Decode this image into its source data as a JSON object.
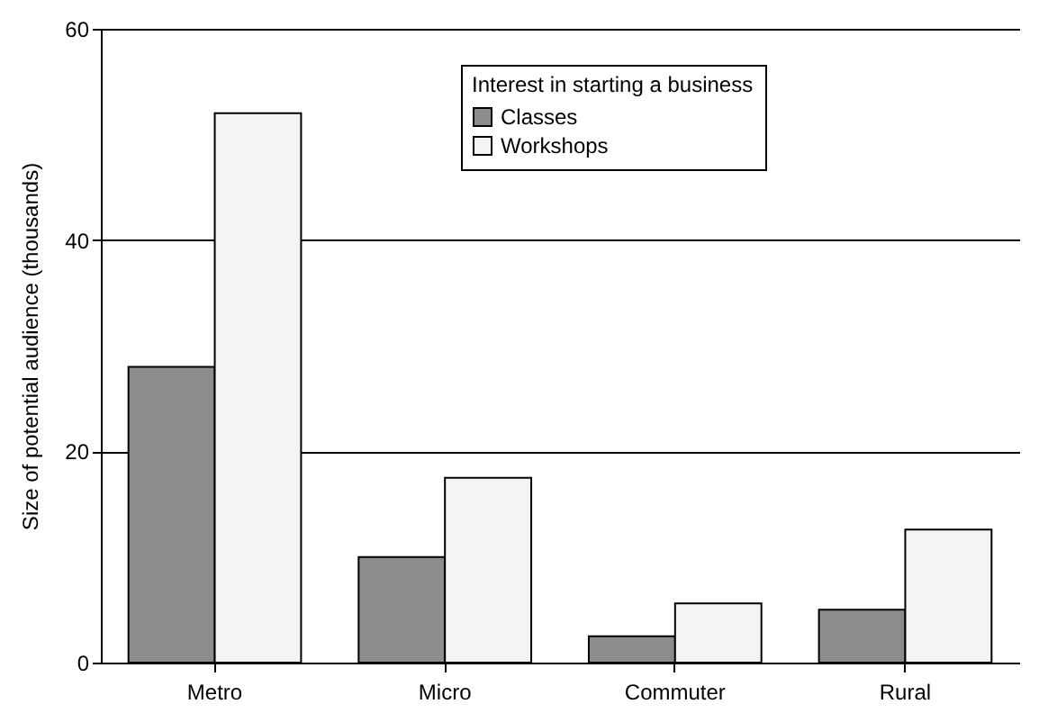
{
  "chart_data": {
    "type": "bar",
    "ylabel": "Size of potential audience (thousands)",
    "legend_title": "Interest in starting a business",
    "categories": [
      "Metro",
      "Micro",
      "Commuter",
      "Rural"
    ],
    "series": [
      {
        "name": "Classes",
        "color": "#8c8c8c",
        "values": [
          28,
          10,
          2.5,
          5
        ]
      },
      {
        "name": "Workshops",
        "color": "#f4f4f4",
        "values": [
          52,
          17.5,
          5.6,
          12.6
        ]
      }
    ],
    "ylim": [
      0,
      60
    ],
    "yticks": [
      0,
      20,
      40,
      60
    ],
    "grid": "y",
    "legend": "top"
  }
}
